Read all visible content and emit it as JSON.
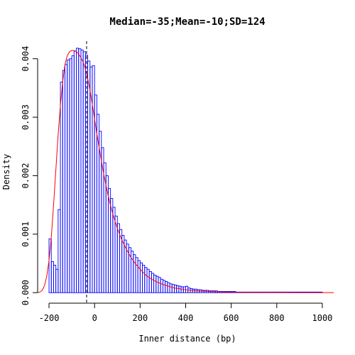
{
  "chart_data": {
    "type": "bar",
    "title": "Median=-35;Mean=-10;SD=124",
    "xlabel": "Inner distance (bp)",
    "ylabel": "Density",
    "xlim": [
      -250,
      1050
    ],
    "ylim": [
      -0.00018,
      0.0043
    ],
    "x_ticks": [
      -200,
      0,
      200,
      400,
      600,
      800,
      1000
    ],
    "x_tick_labels": [
      "-200",
      "0",
      "200",
      "400",
      "600",
      "800",
      "1000"
    ],
    "y_ticks": [
      0,
      0.001,
      0.002,
      0.003,
      0.004
    ],
    "y_tick_labels": [
      "0.000",
      "0.001",
      "0.002",
      "0.003",
      "0.004"
    ],
    "grid": false,
    "bin_width": 10,
    "bins_start": [
      -200,
      -190,
      -180,
      -170,
      -160,
      -150,
      -140,
      -130,
      -120,
      -110,
      -100,
      -90,
      -80,
      -70,
      -60,
      -50,
      -40,
      -30,
      -20,
      -10,
      0,
      10,
      20,
      30,
      40,
      50,
      60,
      70,
      80,
      90,
      100,
      110,
      120,
      130,
      140,
      150,
      160,
      170,
      180,
      190,
      200,
      210,
      220,
      230,
      240,
      250,
      260,
      270,
      280,
      290,
      300,
      310,
      320,
      330,
      340,
      350,
      360,
      370,
      380,
      390,
      400,
      410,
      420,
      430,
      440,
      450,
      460,
      470,
      480,
      490,
      500,
      510,
      520,
      530,
      540,
      550,
      560,
      570,
      580,
      590,
      600,
      610,
      620,
      630,
      640,
      650,
      660,
      670,
      680,
      690,
      700,
      710,
      720,
      730,
      740,
      750,
      760,
      770,
      780,
      790,
      800,
      810,
      820,
      830,
      840,
      850,
      860,
      870,
      880,
      890,
      900,
      910,
      920,
      930,
      940,
      950,
      960,
      970,
      980,
      990
    ],
    "values": [
      0.00092,
      0.00053,
      0.00047,
      0.0004,
      0.00142,
      0.0036,
      0.0038,
      0.0039,
      0.00398,
      0.004,
      0.00405,
      0.00413,
      0.00418,
      0.00417,
      0.00415,
      0.00412,
      0.00406,
      0.00396,
      0.00386,
      0.00388,
      0.00338,
      0.00305,
      0.00276,
      0.00248,
      0.00222,
      0.002,
      0.00178,
      0.00161,
      0.00146,
      0.00131,
      0.00118,
      0.00108,
      0.00098,
      0.0009,
      0.00083,
      0.00077,
      0.00071,
      0.00065,
      0.0006,
      0.00055,
      0.00051,
      0.00047,
      0.00043,
      0.0004,
      0.00036,
      0.00033,
      0.0003,
      0.00028,
      0.00026,
      0.00023,
      0.00021,
      0.00019,
      0.00017,
      0.00015,
      0.00014,
      0.00013,
      0.00012,
      0.00011,
      0.0001,
      0.0001,
      0.00011,
      8e-05,
      7e-05,
      6e-05,
      6e-05,
      5e-05,
      5e-05,
      4e-05,
      4e-05,
      4e-05,
      3e-05,
      3e-05,
      3e-05,
      3e-05,
      2e-05,
      2e-05,
      2e-05,
      2e-05,
      2e-05,
      2e-05,
      2e-05,
      2e-05,
      1e-05,
      1e-05,
      1e-05,
      1e-05,
      1e-05,
      1e-05,
      1e-05,
      1e-05,
      1e-05,
      1e-05,
      1e-05,
      1e-05,
      1e-05,
      1e-05,
      1e-05,
      1e-05,
      1e-05,
      1e-05,
      1e-05,
      1e-05,
      1e-05,
      1e-05,
      1e-05,
      1e-05,
      1e-05,
      1e-05,
      1e-05,
      1e-05,
      1e-05,
      1e-05,
      1e-05,
      1e-05,
      1e-05,
      1e-05,
      1e-05,
      1e-05,
      1e-05,
      1e-05
    ],
    "fit_curve": {
      "x": [
        -250,
        -240,
        -230,
        -220,
        -210,
        -200,
        -190,
        -180,
        -170,
        -160,
        -150,
        -140,
        -130,
        -120,
        -110,
        -100,
        -90,
        -80,
        -70,
        -60,
        -50,
        -40,
        -30,
        -20,
        -10,
        0,
        10,
        20,
        30,
        40,
        50,
        60,
        70,
        80,
        90,
        100,
        120,
        140,
        160,
        180,
        200,
        225,
        250,
        275,
        300,
        350,
        400,
        450,
        500,
        550,
        600,
        700,
        800,
        900,
        1000,
        1050
      ],
      "y": [
        0.0,
        1e-05,
        4e-05,
        0.00012,
        0.00028,
        0.00055,
        0.00095,
        0.0015,
        0.0021,
        0.0027,
        0.0032,
        0.0036,
        0.0039,
        0.00405,
        0.00412,
        0.00414,
        0.00414,
        0.00412,
        0.00408,
        0.00402,
        0.00394,
        0.00382,
        0.00366,
        0.00346,
        0.00322,
        0.00297,
        0.00272,
        0.00248,
        0.00225,
        0.00203,
        0.00184,
        0.00165,
        0.00149,
        0.00135,
        0.00122,
        0.0011,
        0.0009,
        0.00074,
        0.0006,
        0.00049,
        0.0004,
        0.0003,
        0.00023,
        0.00018,
        0.00014,
        8e-05,
        5e-05,
        3e-05,
        2e-05,
        1.2e-05,
        8e-06,
        4e-06,
        2e-06,
        1e-06,
        5e-07,
        3e-07
      ]
    },
    "median": -35,
    "colors": {
      "bars": "#0000ff",
      "fit_curve": "#ff0000",
      "median_line": "#000000",
      "axes": "#000000"
    }
  }
}
